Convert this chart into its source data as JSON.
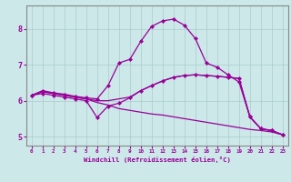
{
  "xlabel": "Windchill (Refroidissement éolien,°C)",
  "background_color": "#cce8e8",
  "grid_color": "#aacccc",
  "line_color": "#990099",
  "spine_color": "#888888",
  "xlim": [
    -0.5,
    23.5
  ],
  "ylim": [
    4.75,
    8.65
  ],
  "xticks": [
    0,
    1,
    2,
    3,
    4,
    5,
    6,
    7,
    8,
    9,
    10,
    11,
    12,
    13,
    14,
    15,
    16,
    17,
    18,
    19,
    20,
    21,
    22,
    23
  ],
  "yticks": [
    5,
    6,
    7,
    8
  ],
  "line_big": {
    "x": [
      0,
      1,
      2,
      3,
      4,
      5,
      6,
      7,
      8,
      9,
      10,
      11,
      12,
      13,
      14,
      15,
      16,
      17,
      18,
      19,
      20,
      21,
      22,
      23
    ],
    "y": [
      6.15,
      6.28,
      6.22,
      6.18,
      6.12,
      6.08,
      6.05,
      6.42,
      7.05,
      7.15,
      7.65,
      8.07,
      8.22,
      8.27,
      8.1,
      7.73,
      7.05,
      6.93,
      6.72,
      6.52,
      5.55,
      5.22,
      5.17,
      5.05
    ],
    "markers": true
  },
  "line_mid": {
    "x": [
      0,
      1,
      2,
      3,
      4,
      5,
      6,
      7,
      8,
      9,
      10,
      11,
      12,
      13,
      14,
      15,
      16,
      17,
      18,
      19,
      20,
      21,
      22,
      23
    ],
    "y": [
      6.15,
      6.25,
      6.2,
      6.15,
      6.1,
      6.05,
      6.0,
      6.0,
      6.05,
      6.1,
      6.28,
      6.42,
      6.55,
      6.65,
      6.7,
      6.72,
      6.7,
      6.68,
      6.65,
      6.62,
      5.55,
      5.22,
      5.17,
      5.05
    ],
    "markers": false
  },
  "line_dip": {
    "x": [
      0,
      1,
      2,
      3,
      4,
      5,
      6,
      7,
      8,
      9,
      10,
      11,
      12,
      13,
      14,
      15,
      16,
      17,
      18,
      19,
      20,
      21,
      22,
      23
    ],
    "y": [
      6.15,
      6.2,
      6.15,
      6.1,
      6.05,
      6.0,
      5.53,
      5.85,
      5.93,
      6.08,
      6.28,
      6.42,
      6.55,
      6.65,
      6.7,
      6.72,
      6.7,
      6.68,
      6.65,
      6.62,
      5.55,
      5.22,
      5.17,
      5.05
    ],
    "markers": true
  },
  "line_bot": {
    "x": [
      0,
      1,
      2,
      3,
      4,
      5,
      6,
      7,
      8,
      9,
      10,
      11,
      12,
      13,
      14,
      15,
      16,
      17,
      18,
      19,
      20,
      21,
      22,
      23
    ],
    "y": [
      6.15,
      6.25,
      6.2,
      6.15,
      6.1,
      6.05,
      5.95,
      5.88,
      5.78,
      5.73,
      5.68,
      5.63,
      5.6,
      5.55,
      5.5,
      5.45,
      5.4,
      5.35,
      5.3,
      5.25,
      5.2,
      5.17,
      5.13,
      5.05
    ],
    "markers": false
  }
}
